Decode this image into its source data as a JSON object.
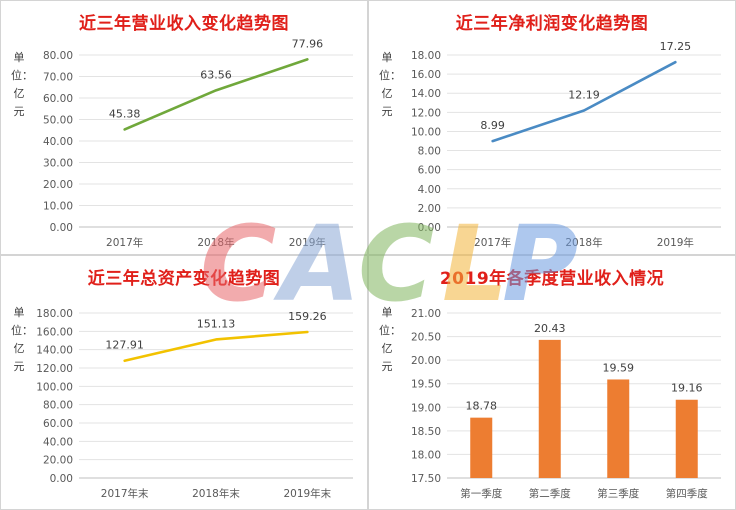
{
  "watermark": {
    "text": "CACLP",
    "letters": [
      {
        "ch": "C",
        "color": "#e8666a"
      },
      {
        "ch": "A",
        "color": "#8aa7d6"
      },
      {
        "ch": "C",
        "color": "#7fb45d"
      },
      {
        "ch": "L",
        "color": "#f2b53a"
      },
      {
        "ch": "P",
        "color": "#6c9be0"
      }
    ]
  },
  "chart_data": [
    {
      "type": "line",
      "title": "近三年营业收入变化趋势图",
      "unit_label": "单位：亿元",
      "color": "#70a83b",
      "categories": [
        "2017年",
        "2018年",
        "2019年"
      ],
      "values": [
        45.38,
        63.56,
        77.96
      ],
      "value_labels": [
        "45.38",
        "63.56",
        "77.96"
      ],
      "ylim": [
        0,
        80
      ],
      "yticks": [
        "0.00",
        "10.00",
        "20.00",
        "30.00",
        "40.00",
        "50.00",
        "60.00",
        "70.00",
        "80.00"
      ],
      "grid": true
    },
    {
      "type": "line",
      "title": "近三年净利润变化趋势图",
      "unit_label": "单位：亿元",
      "color": "#4a8bc4",
      "categories": [
        "2017年",
        "2018年",
        "2019年"
      ],
      "values": [
        8.99,
        12.19,
        17.25
      ],
      "value_labels": [
        "8.99",
        "12.19",
        "17.25"
      ],
      "ylim": [
        0,
        18
      ],
      "yticks": [
        "0.00",
        "2.00",
        "4.00",
        "6.00",
        "8.00",
        "10.00",
        "12.00",
        "14.00",
        "16.00",
        "18.00"
      ],
      "grid": true
    },
    {
      "type": "line",
      "title": "近三年总资产变化趋势图",
      "unit_label": "单位：亿元",
      "color": "#f2c200",
      "categories": [
        "2017年末",
        "2018年末",
        "2019年末"
      ],
      "values": [
        127.91,
        151.13,
        159.26
      ],
      "value_labels": [
        "127.91",
        "151.13",
        "159.26"
      ],
      "ylim": [
        0,
        180
      ],
      "yticks": [
        "0.00",
        "20.00",
        "40.00",
        "60.00",
        "80.00",
        "100.00",
        "120.00",
        "140.00",
        "160.00",
        "180.00"
      ],
      "grid": true
    },
    {
      "type": "bar",
      "title": "2019年各季度营业收入情况",
      "unit_label": "单位：亿元",
      "color": "#ed7d31",
      "categories": [
        "第一季度",
        "第二季度",
        "第三季度",
        "第四季度"
      ],
      "values": [
        18.78,
        20.43,
        19.59,
        19.16
      ],
      "value_labels": [
        "18.78",
        "20.43",
        "19.59",
        "19.16"
      ],
      "ylim": [
        17.5,
        21.0
      ],
      "yticks": [
        "17.50",
        "18.00",
        "18.50",
        "19.00",
        "19.50",
        "20.00",
        "20.50",
        "21.00"
      ],
      "grid": true
    }
  ]
}
